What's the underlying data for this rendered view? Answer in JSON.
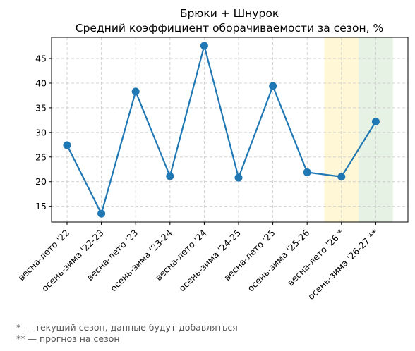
{
  "chart_data": {
    "type": "line",
    "title": "Брюки + Шнурок",
    "subtitle": "Средний коэффициент оборачиваемости за сезон, %",
    "xlabel": "",
    "ylabel": "",
    "categories": [
      "весна-лето '22",
      "осень-зима '22-23",
      "весна-лето '23",
      "осень-зима '23-24",
      "весна-лето '24",
      "осень-зима '24-25",
      "весна-лето '25",
      "осень-зима '25-26",
      "весна-лето '26 *",
      "осень-зима '26-27 **"
    ],
    "series": [
      {
        "values": [
          27.4,
          13.5,
          38.3,
          21.1,
          47.6,
          20.8,
          39.4,
          21.9,
          21.0,
          32.2
        ],
        "color": "#1f77b4"
      }
    ],
    "yticks": [
      15,
      20,
      25,
      30,
      35,
      40,
      45
    ],
    "ylim": [
      11.8,
      49.3
    ],
    "grid": true,
    "highlights": [
      {
        "category": "весна-лето '26 *",
        "color": "#fff7d6"
      },
      {
        "category": "осень-зима '26-27 **",
        "color": "#e6f2e3"
      }
    ]
  },
  "footnotes": {
    "line1": "* — текущий сезон, данные будут добавляться",
    "line2": "** — прогноз на сезон"
  }
}
